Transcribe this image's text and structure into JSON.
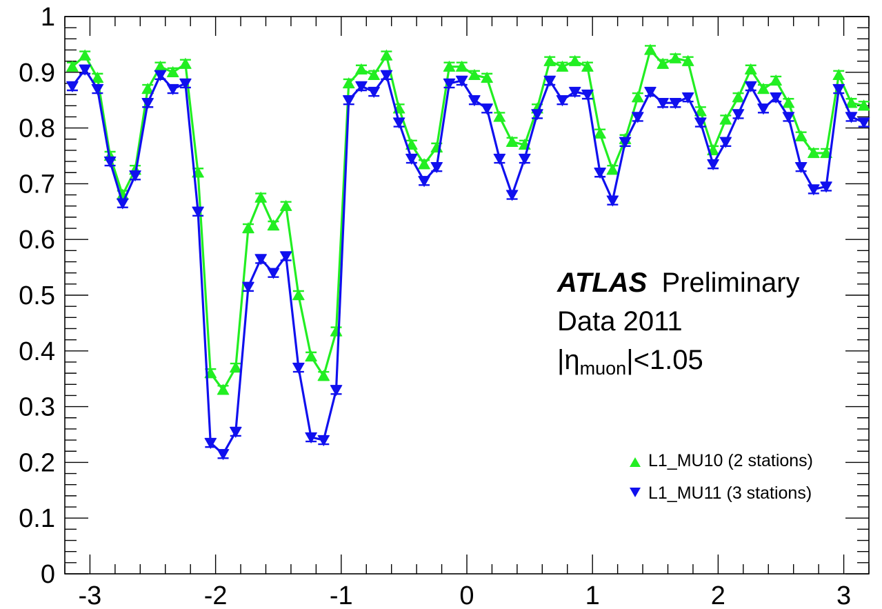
{
  "chart_data": {
    "type": "line",
    "title": "",
    "xlabel": "",
    "ylabel": "",
    "xlim": [
      -3.2,
      3.2
    ],
    "ylim": [
      0,
      1
    ],
    "x_ticks": [
      -3,
      -2,
      -1,
      0,
      1,
      2,
      3
    ],
    "x_tick_labels": [
      "-3",
      "-2",
      "-1",
      "0",
      "1",
      "2",
      "3"
    ],
    "y_ticks": [
      0,
      0.1,
      0.2,
      0.3,
      0.4,
      0.5,
      0.6,
      0.7,
      0.8,
      0.9,
      1
    ],
    "y_tick_labels": [
      "0",
      "0.1",
      "0.2",
      "0.3",
      "0.4",
      "0.5",
      "0.6",
      "0.7",
      "0.8",
      "0.9",
      "1"
    ],
    "grid": false,
    "legend_position": "bottom-right",
    "x": [
      -3.14,
      -3.04,
      -2.94,
      -2.84,
      -2.74,
      -2.64,
      -2.54,
      -2.44,
      -2.34,
      -2.24,
      -2.14,
      -2.04,
      -1.94,
      -1.84,
      -1.74,
      -1.64,
      -1.54,
      -1.44,
      -1.34,
      -1.24,
      -1.14,
      -1.04,
      -0.94,
      -0.84,
      -0.74,
      -0.64,
      -0.54,
      -0.44,
      -0.34,
      -0.24,
      -0.14,
      -0.04,
      0.06,
      0.16,
      0.26,
      0.36,
      0.46,
      0.56,
      0.66,
      0.76,
      0.86,
      0.96,
      1.06,
      1.16,
      1.26,
      1.36,
      1.46,
      1.56,
      1.66,
      1.76,
      1.86,
      1.96,
      2.06,
      2.16,
      2.26,
      2.36,
      2.46,
      2.56,
      2.66,
      2.76,
      2.86,
      2.96,
      3.06,
      3.16
    ],
    "series": [
      {
        "name": "L1_MU10 (2 stations)",
        "color": "#22ee22",
        "marker": "triangle-up",
        "values": [
          0.91,
          0.93,
          0.89,
          0.75,
          0.68,
          0.725,
          0.87,
          0.91,
          0.9,
          0.915,
          0.72,
          0.36,
          0.33,
          0.37,
          0.62,
          0.675,
          0.625,
          0.66,
          0.5,
          0.39,
          0.355,
          0.435,
          0.88,
          0.905,
          0.895,
          0.93,
          0.835,
          0.77,
          0.735,
          0.765,
          0.91,
          0.91,
          0.895,
          0.89,
          0.82,
          0.775,
          0.77,
          0.835,
          0.92,
          0.91,
          0.92,
          0.91,
          0.79,
          0.725,
          0.78,
          0.855,
          0.94,
          0.915,
          0.925,
          0.92,
          0.83,
          0.76,
          0.815,
          0.855,
          0.905,
          0.87,
          0.885,
          0.845,
          0.785,
          0.755,
          0.755,
          0.895,
          0.845,
          0.84
        ]
      },
      {
        "name": "L1_MU11 (3 stations)",
        "color": "#1010ee",
        "marker": "triangle-down",
        "values": [
          0.875,
          0.905,
          0.87,
          0.74,
          0.665,
          0.715,
          0.845,
          0.895,
          0.87,
          0.88,
          0.65,
          0.235,
          0.215,
          0.255,
          0.515,
          0.565,
          0.54,
          0.57,
          0.37,
          0.245,
          0.24,
          0.33,
          0.85,
          0.875,
          0.865,
          0.895,
          0.81,
          0.745,
          0.705,
          0.73,
          0.88,
          0.885,
          0.85,
          0.835,
          0.745,
          0.68,
          0.745,
          0.825,
          0.885,
          0.85,
          0.865,
          0.86,
          0.72,
          0.67,
          0.775,
          0.82,
          0.865,
          0.845,
          0.845,
          0.855,
          0.81,
          0.735,
          0.775,
          0.825,
          0.875,
          0.835,
          0.855,
          0.82,
          0.73,
          0.69,
          0.695,
          0.87,
          0.82,
          0.81
        ]
      }
    ]
  },
  "annotation": {
    "atlas": "ATLAS",
    "preliminary": "Preliminary",
    "data_label": "Data 2011",
    "eta_prefix": "|η",
    "eta_subscript": "muon",
    "eta_suffix": "|<1.05"
  }
}
